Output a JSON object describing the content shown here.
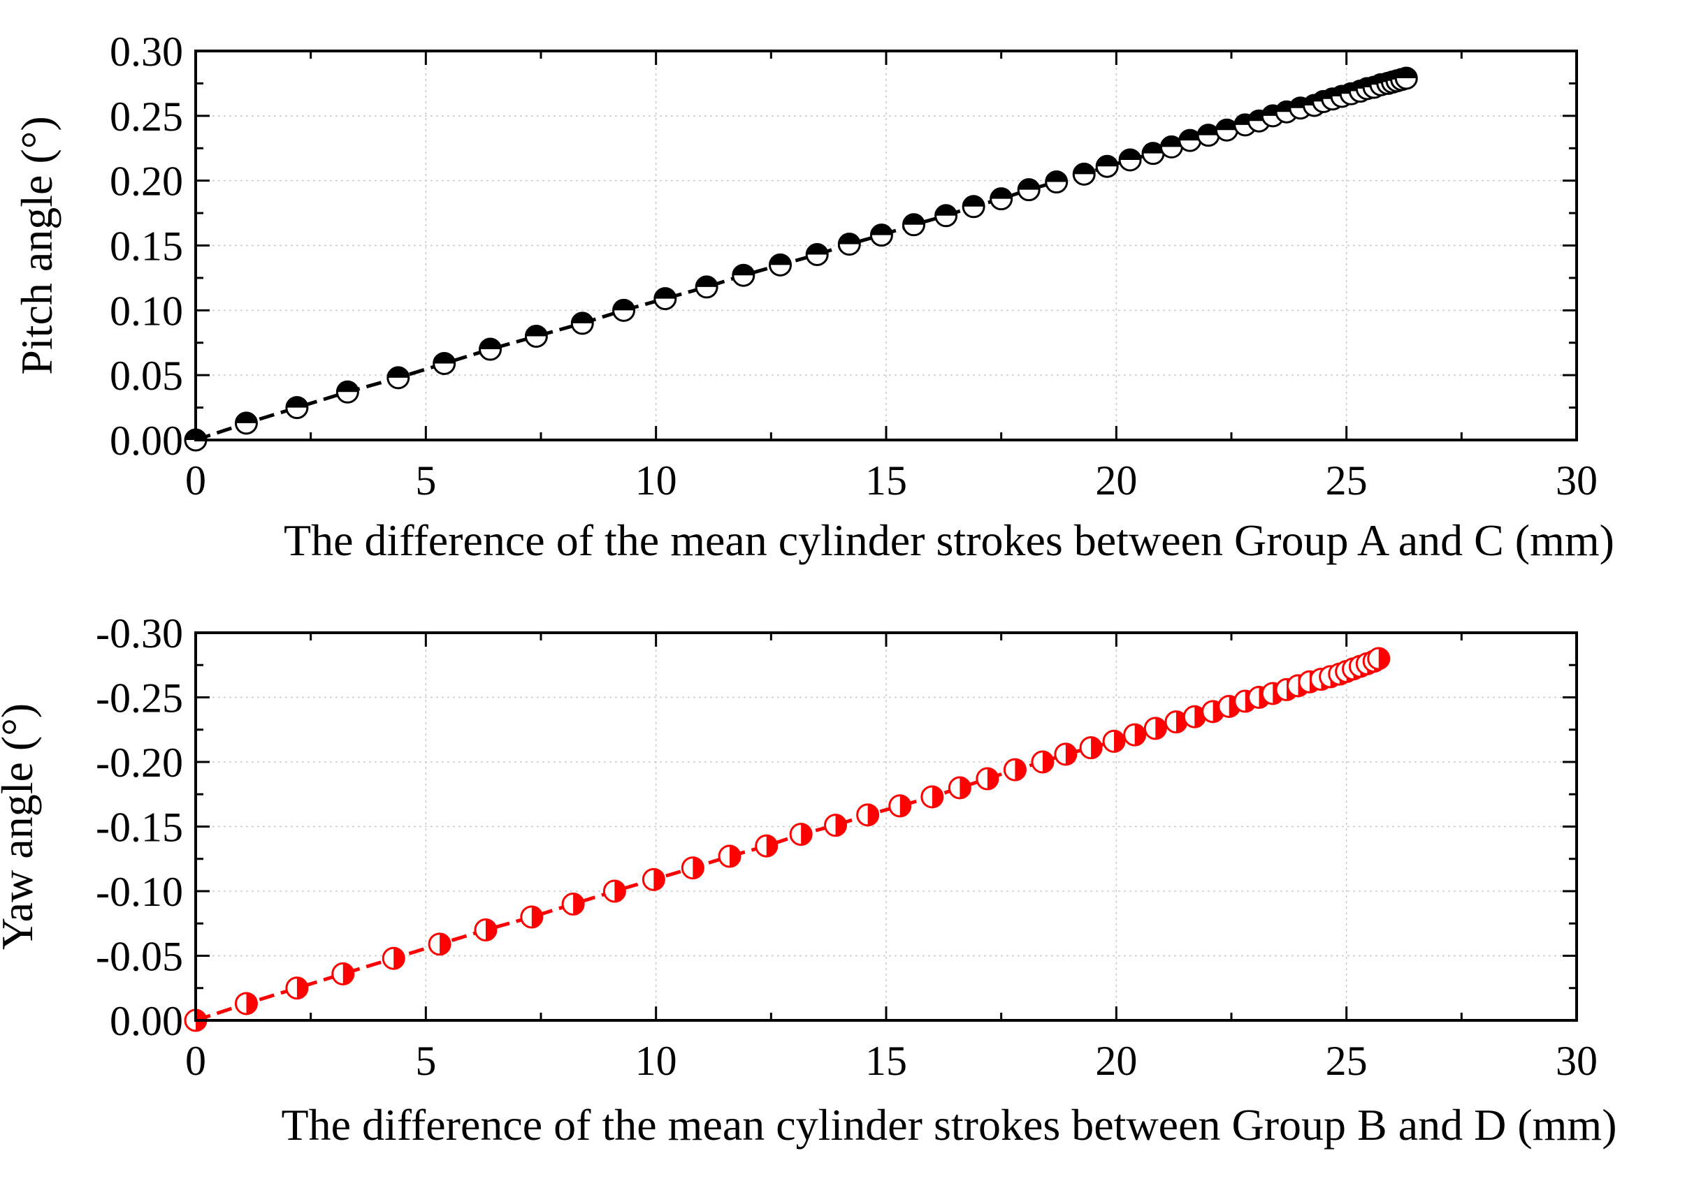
{
  "chart_data": [
    {
      "type": "scatter",
      "name": "pitch",
      "xlabel": "The difference of the mean cylinder strokes between Group A and C (mm)",
      "ylabel": "Pitch angle (°)",
      "xlim": [
        0,
        30
      ],
      "ylim": [
        0,
        0.3
      ],
      "xticks": [
        0,
        5,
        10,
        15,
        20,
        25,
        30
      ],
      "yticks": [
        0.0,
        0.05,
        0.1,
        0.15,
        0.2,
        0.25,
        0.3
      ],
      "xtick_labels": [
        "0",
        "5",
        "10",
        "15",
        "20",
        "25",
        "30"
      ],
      "ytick_labels": [
        "0.00",
        "0.05",
        "0.10",
        "0.15",
        "0.20",
        "0.25",
        "0.30"
      ],
      "grid": true,
      "series": [
        {
          "name": "Pitch angle",
          "color": "#000000",
          "marker": "circle-half-top-filled",
          "line": "dashed",
          "x": [
            0,
            1.1,
            2.2,
            3.3,
            4.4,
            5.4,
            6.4,
            7.4,
            8.4,
            9.3,
            10.2,
            11.1,
            11.9,
            12.7,
            13.5,
            14.2,
            14.9,
            15.6,
            16.3,
            16.9,
            17.5,
            18.1,
            18.7,
            19.3,
            19.8,
            20.3,
            20.8,
            21.2,
            21.6,
            22.0,
            22.4,
            22.8,
            23.1,
            23.4,
            23.7,
            24.0,
            24.3,
            24.5,
            24.7,
            24.9,
            25.1,
            25.3,
            25.45,
            25.6,
            25.75,
            25.9,
            26.0,
            26.1,
            26.2,
            26.3
          ],
          "y": [
            0.0,
            0.013,
            0.025,
            0.037,
            0.048,
            0.059,
            0.07,
            0.08,
            0.09,
            0.1,
            0.109,
            0.118,
            0.127,
            0.135,
            0.143,
            0.151,
            0.158,
            0.166,
            0.173,
            0.18,
            0.186,
            0.193,
            0.199,
            0.205,
            0.211,
            0.216,
            0.221,
            0.226,
            0.231,
            0.235,
            0.239,
            0.243,
            0.246,
            0.25,
            0.253,
            0.256,
            0.258,
            0.261,
            0.263,
            0.265,
            0.267,
            0.269,
            0.271,
            0.272,
            0.274,
            0.275,
            0.276,
            0.277,
            0.278,
            0.279
          ]
        }
      ]
    },
    {
      "type": "scatter",
      "name": "yaw",
      "xlabel": "The difference of the mean cylinder strokes between Group B and D (mm)",
      "ylabel": "Yaw angle (°)",
      "xlim": [
        0,
        30
      ],
      "ylim": [
        0,
        -0.3
      ],
      "xticks": [
        0,
        5,
        10,
        15,
        20,
        25,
        30
      ],
      "yticks": [
        0.0,
        -0.05,
        -0.1,
        -0.15,
        -0.2,
        -0.25,
        -0.3
      ],
      "xtick_labels": [
        "0",
        "5",
        "10",
        "15",
        "20",
        "25",
        "30"
      ],
      "ytick_labels": [
        "0.00",
        "-0.05",
        "-0.10",
        "-0.15",
        "-0.20",
        "-0.25",
        "-0.30"
      ],
      "grid": true,
      "series": [
        {
          "name": "Yaw angle",
          "color": "#ff0000",
          "marker": "circle-half-right-filled",
          "line": "dashed",
          "x": [
            0,
            1.1,
            2.2,
            3.2,
            4.3,
            5.3,
            6.3,
            7.3,
            8.2,
            9.1,
            9.95,
            10.8,
            11.6,
            12.4,
            13.15,
            13.9,
            14.6,
            15.3,
            16.0,
            16.6,
            17.2,
            17.8,
            18.4,
            18.9,
            19.45,
            19.95,
            20.4,
            20.85,
            21.3,
            21.7,
            22.1,
            22.45,
            22.8,
            23.1,
            23.4,
            23.7,
            23.95,
            24.2,
            24.45,
            24.65,
            24.85,
            25.0,
            25.15,
            25.3,
            25.45,
            25.6,
            25.7
          ],
          "y": [
            0.0,
            -0.013,
            -0.025,
            -0.036,
            -0.048,
            -0.059,
            -0.07,
            -0.08,
            -0.09,
            -0.1,
            -0.109,
            -0.118,
            -0.127,
            -0.135,
            -0.144,
            -0.151,
            -0.159,
            -0.166,
            -0.173,
            -0.18,
            -0.187,
            -0.194,
            -0.2,
            -0.206,
            -0.211,
            -0.216,
            -0.221,
            -0.226,
            -0.231,
            -0.235,
            -0.239,
            -0.243,
            -0.247,
            -0.25,
            -0.253,
            -0.256,
            -0.259,
            -0.262,
            -0.264,
            -0.266,
            -0.268,
            -0.27,
            -0.272,
            -0.274,
            -0.276,
            -0.278,
            -0.28
          ]
        }
      ]
    }
  ]
}
